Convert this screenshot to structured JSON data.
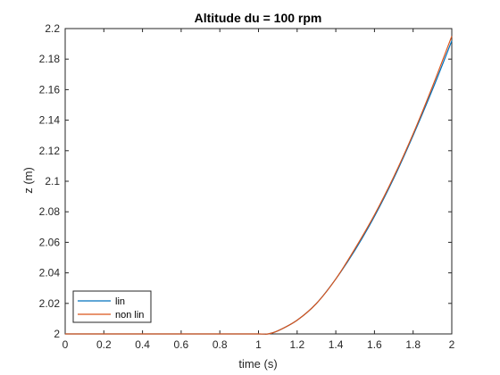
{
  "chart_data": {
    "type": "line",
    "title": "Altitude du = 100 rpm",
    "xlabel": "time (s)",
    "ylabel": "z (m)",
    "xlim": [
      0,
      2
    ],
    "ylim": [
      2,
      2.2
    ],
    "xticks": [
      "0",
      "0.2",
      "0.4",
      "0.6",
      "0.8",
      "1",
      "1.2",
      "1.4",
      "1.6",
      "1.8",
      "2"
    ],
    "yticks": [
      "2",
      "2.02",
      "2.04",
      "2.06",
      "2.08",
      "2.1",
      "2.12",
      "2.14",
      "2.16",
      "2.18",
      "2.2"
    ],
    "grid": false,
    "legend_position": "bottom-left",
    "series": [
      {
        "name": "lin",
        "color": "#0072BD",
        "x": [
          0,
          0.2,
          0.4,
          0.6,
          0.8,
          1.0,
          1.05,
          1.1,
          1.2,
          1.3,
          1.4,
          1.5,
          1.6,
          1.7,
          1.8,
          1.9,
          2.0
        ],
        "y": [
          2,
          2,
          2,
          2,
          2,
          2,
          2.0,
          2.002,
          2.009,
          2.02,
          2.036,
          2.055,
          2.077,
          2.102,
          2.13,
          2.16,
          2.192
        ]
      },
      {
        "name": "non lin",
        "color": "#D95319",
        "x": [
          0,
          0.2,
          0.4,
          0.6,
          0.8,
          1.0,
          1.05,
          1.1,
          1.2,
          1.3,
          1.4,
          1.5,
          1.6,
          1.7,
          1.8,
          1.9,
          2.0
        ],
        "y": [
          2,
          2,
          2,
          2,
          2,
          2,
          2.0,
          2.002,
          2.009,
          2.02,
          2.036,
          2.056,
          2.078,
          2.103,
          2.131,
          2.162,
          2.195
        ]
      }
    ]
  }
}
